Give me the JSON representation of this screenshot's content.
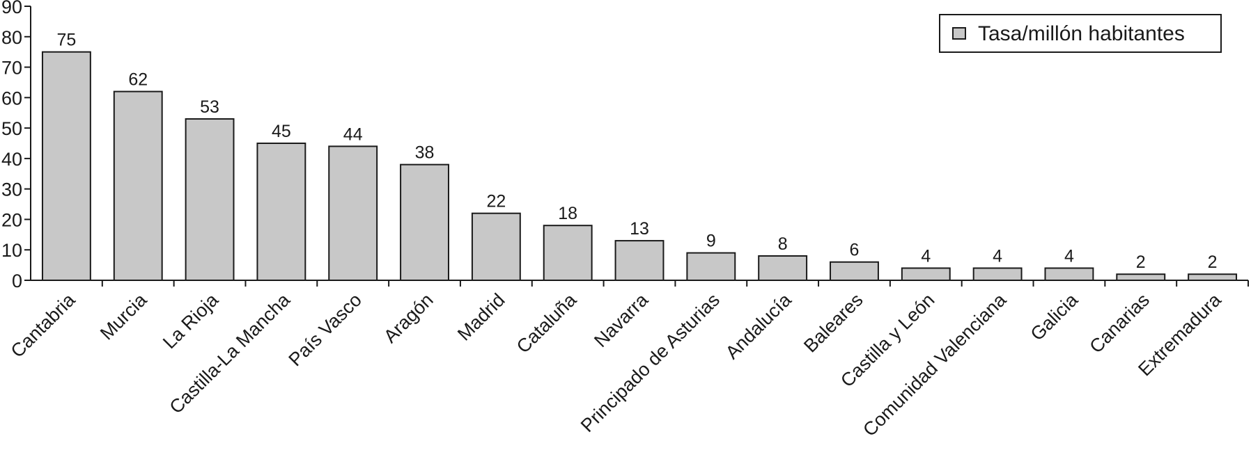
{
  "chart_data": {
    "type": "bar",
    "categories": [
      "Cantabria",
      "Murcia",
      "La Rioja",
      "Castilla-La Mancha",
      "País Vasco",
      "Aragón",
      "Madrid",
      "Cataluña",
      "Navarra",
      "Principado de Asturias",
      "Andalucía",
      "Baleares",
      "Castilla y León",
      "Comunidad Valenciana",
      "Galicia",
      "Canarias",
      "Extremadura"
    ],
    "series": [
      {
        "name": "Tasa/millón habitantes",
        "values": [
          75,
          62,
          53,
          45,
          44,
          38,
          22,
          18,
          13,
          9,
          8,
          6,
          4,
          4,
          4,
          2,
          2
        ],
        "color": "#c8c8c8"
      }
    ],
    "data_labels": [
      "75",
      "62",
      "53",
      "45",
      "44",
      "38",
      "22",
      "18",
      "13",
      "9",
      "8",
      "6",
      "4",
      "4",
      "4",
      "2",
      "2"
    ],
    "title": "",
    "xlabel": "",
    "ylabel": "",
    "ylim": [
      0,
      90
    ],
    "yticks": [
      "0",
      "10",
      "20",
      "30",
      "40",
      "50",
      "60",
      "70",
      "80",
      "90"
    ],
    "grid": false,
    "legend_position": "top-right"
  }
}
